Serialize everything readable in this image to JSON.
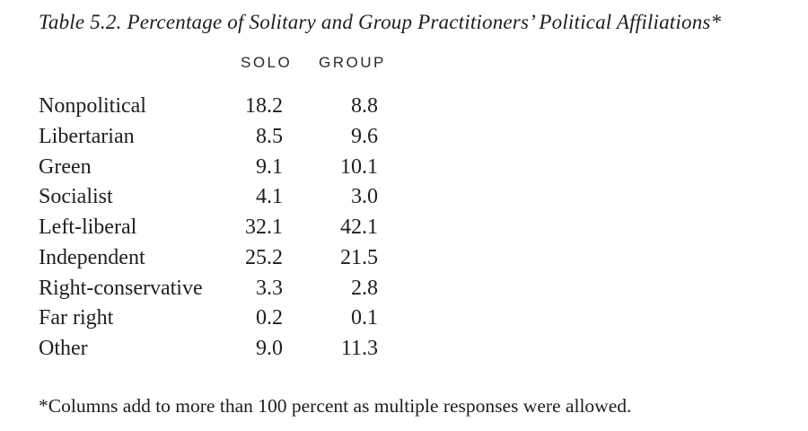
{
  "table": {
    "title": "Table 5.2. Percentage of Solitary and Group Practitioners’ Political Affiliations*",
    "columns": [
      "SOLO",
      "GROUP"
    ],
    "rows": [
      {
        "label": "Nonpolitical",
        "solo": "18.2",
        "group": "8.8"
      },
      {
        "label": "Libertarian",
        "solo": "8.5",
        "group": "9.6"
      },
      {
        "label": "Green",
        "solo": "9.1",
        "group": "10.1"
      },
      {
        "label": "Socialist",
        "solo": "4.1",
        "group": "3.0"
      },
      {
        "label": "Left-liberal",
        "solo": "32.1",
        "group": "42.1"
      },
      {
        "label": "Independent",
        "solo": "25.2",
        "group": "21.5"
      },
      {
        "label": "Right-conservative",
        "solo": "3.3",
        "group": "2.8"
      },
      {
        "label": "Far right",
        "solo": "0.2",
        "group": "0.1"
      },
      {
        "label": "Other",
        "solo": "9.0",
        "group": "11.3"
      }
    ],
    "footnote": "*Columns add to more than 100 percent as multiple responses were allowed.",
    "colors": {
      "background": "#ffffff",
      "text": "#1f1f1f"
    }
  },
  "chart_data": {
    "type": "table",
    "title": "Table 5.2. Percentage of Solitary and Group Practitioners’ Political Affiliations*",
    "categories": [
      "Nonpolitical",
      "Libertarian",
      "Green",
      "Socialist",
      "Left-liberal",
      "Independent",
      "Right-conservative",
      "Far right",
      "Other"
    ],
    "series": [
      {
        "name": "SOLO",
        "values": [
          18.2,
          8.5,
          9.1,
          4.1,
          32.1,
          25.2,
          3.3,
          0.2,
          9.0
        ]
      },
      {
        "name": "GROUP",
        "values": [
          8.8,
          9.6,
          10.1,
          3.0,
          42.1,
          21.5,
          2.8,
          0.1,
          11.3
        ]
      }
    ],
    "annotations": [
      "*Columns add to more than 100 percent as multiple responses were allowed."
    ]
  }
}
